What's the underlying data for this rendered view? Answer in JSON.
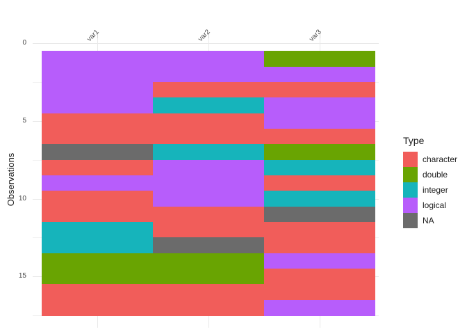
{
  "chart_data": {
    "type": "heatmap",
    "title": "",
    "ylabel": "Observations",
    "columns": [
      "var1",
      "var2",
      "var3"
    ],
    "y_tick_labels": [
      "0",
      "5",
      "10",
      "15"
    ],
    "y_tick_values": [
      0,
      5,
      10,
      15
    ],
    "y_minor_tick_values": [
      2.5,
      7.5,
      12.5,
      17.5
    ],
    "n_observations": 17,
    "axis_range_y": [
      0,
      18
    ],
    "grid": "on",
    "legend_position": "right",
    "legend": {
      "title": "Type",
      "entries": [
        {
          "label": "character",
          "color": "#F15D5A"
        },
        {
          "label": "double",
          "color": "#69A402"
        },
        {
          "label": "integer",
          "color": "#16B4BB"
        },
        {
          "label": "logical",
          "color": "#B75DFB"
        },
        {
          "label": "NA",
          "color": "#6B6B6B"
        }
      ]
    },
    "palette": {
      "character": "#F15D5A",
      "double": "#69A402",
      "integer": "#16B4BB",
      "logical": "#B75DFB",
      "NA": "#6B6B6B"
    },
    "cells": {
      "var1": [
        "logical",
        "logical",
        "logical",
        "logical",
        "character",
        "character",
        "NA",
        "character",
        "logical",
        "character",
        "character",
        "integer",
        "integer",
        "double",
        "double",
        "character",
        "character"
      ],
      "var2": [
        "logical",
        "logical",
        "character",
        "integer",
        "character",
        "character",
        "integer",
        "logical",
        "logical",
        "logical",
        "character",
        "character",
        "NA",
        "double",
        "double",
        "character",
        "character"
      ],
      "var3": [
        "double",
        "logical",
        "character",
        "logical",
        "logical",
        "character",
        "double",
        "integer",
        "character",
        "integer",
        "NA",
        "character",
        "character",
        "logical",
        "character",
        "character",
        "logical"
      ]
    }
  }
}
